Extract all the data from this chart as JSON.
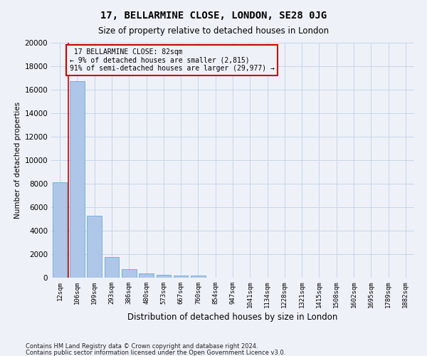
{
  "title": "17, BELLARMINE CLOSE, LONDON, SE28 0JG",
  "subtitle": "Size of property relative to detached houses in London",
  "xlabel": "Distribution of detached houses by size in London",
  "ylabel": "Number of detached properties",
  "bar_color": "#aec6e8",
  "bar_edge_color": "#6aaad4",
  "grid_color": "#c8d4e8",
  "background_color": "#eef2f8",
  "annotation_box_color": "#cc0000",
  "property_line_color": "#cc0000",
  "categories": [
    "12sqm",
    "106sqm",
    "199sqm",
    "293sqm",
    "386sqm",
    "480sqm",
    "573sqm",
    "667sqm",
    "760sqm",
    "854sqm",
    "947sqm",
    "1041sqm",
    "1134sqm",
    "1228sqm",
    "1321sqm",
    "1415sqm",
    "1508sqm",
    "1602sqm",
    "1695sqm",
    "1789sqm",
    "1882sqm"
  ],
  "values": [
    8100,
    16700,
    5300,
    1750,
    700,
    350,
    220,
    190,
    155,
    0,
    0,
    0,
    0,
    0,
    0,
    0,
    0,
    0,
    0,
    0,
    0
  ],
  "ylim": [
    0,
    20000
  ],
  "yticks": [
    0,
    2000,
    4000,
    6000,
    8000,
    10000,
    12000,
    14000,
    16000,
    18000,
    20000
  ],
  "property_label": "17 BELLARMINE CLOSE: 82sqm",
  "pct_smaller": "9%",
  "n_smaller": "2,815",
  "pct_larger": "91%",
  "n_larger": "29,977",
  "footer1": "Contains HM Land Registry data © Crown copyright and database right 2024.",
  "footer2": "Contains public sector information licensed under the Open Government Licence v3.0.",
  "figsize": [
    6.0,
    5.0
  ],
  "dpi": 100
}
